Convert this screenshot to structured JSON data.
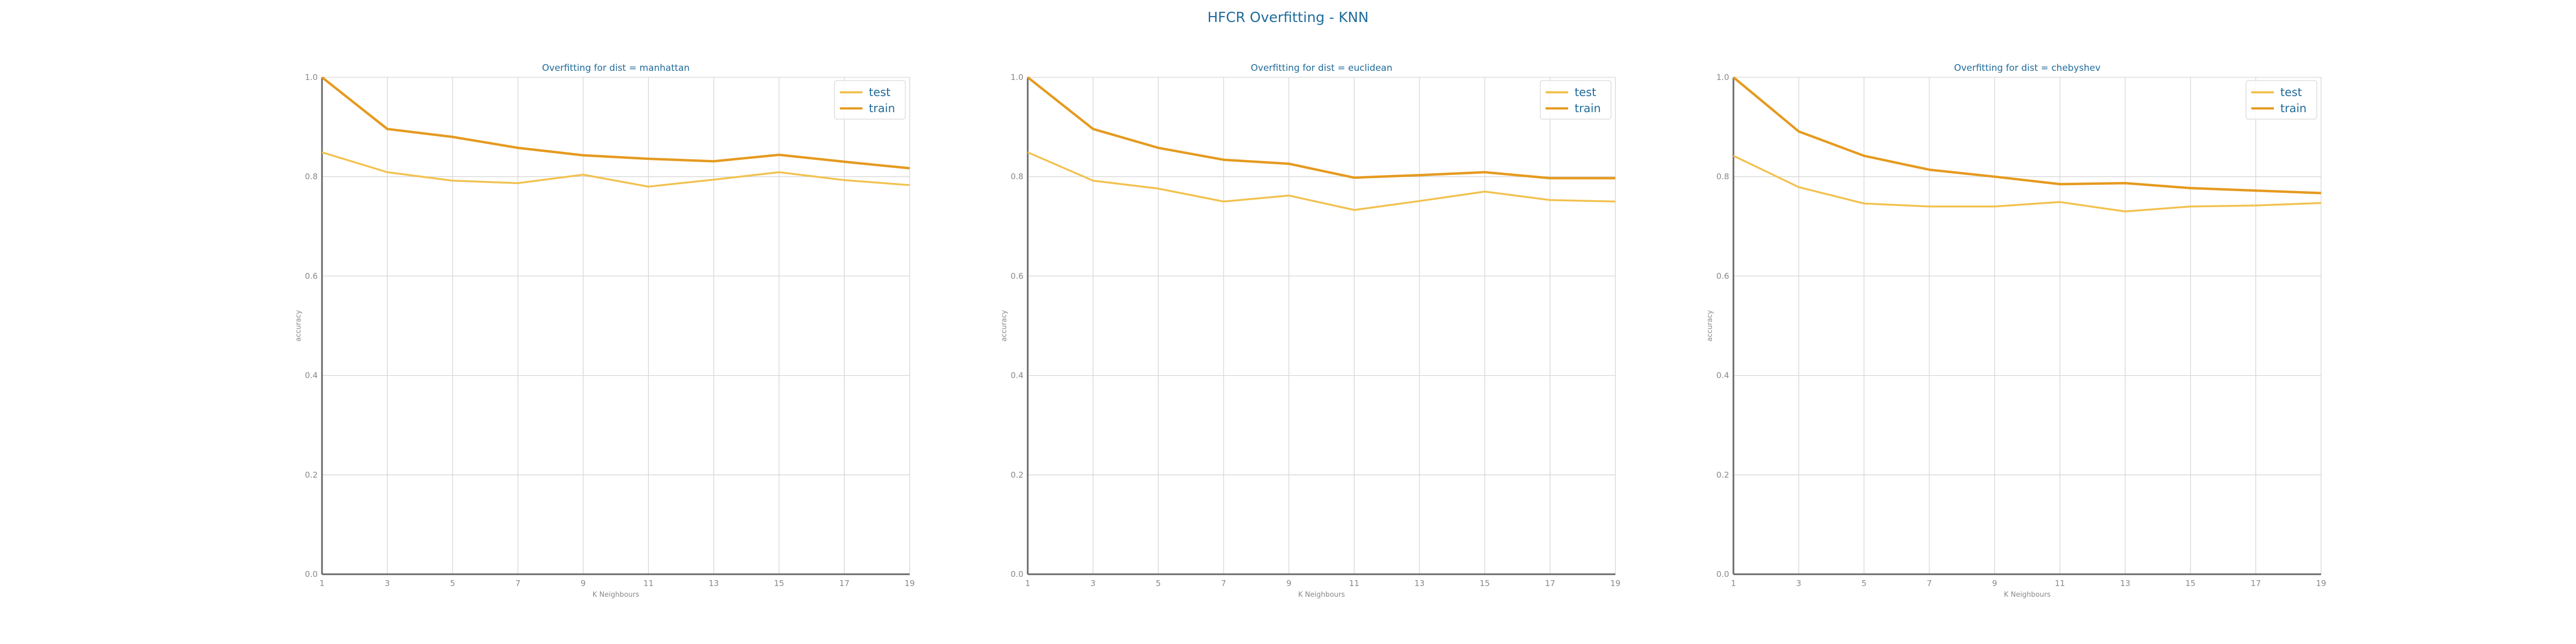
{
  "figure": {
    "title": "HFCR Overfitting - KNN"
  },
  "colors": {
    "title": "#1f6b9a",
    "test": "#f2c14e",
    "train": "#e59a1f",
    "grid": "#d6d6d6",
    "axis": "#666666",
    "tick": "#888888"
  },
  "chart_data": [
    {
      "type": "line",
      "title": "Overfitting for dist = manhattan",
      "xlabel": "K Neighbours",
      "ylabel": "accuracy",
      "x": [
        1,
        3,
        5,
        7,
        9,
        11,
        13,
        15,
        17,
        19
      ],
      "xticks": [
        "1",
        "3",
        "5",
        "7",
        "9",
        "11",
        "13",
        "15",
        "17",
        "19"
      ],
      "ylim": [
        0.0,
        1.0
      ],
      "yticks": [
        "0.0",
        "0.2",
        "0.4",
        "0.6",
        "0.8",
        "1.0"
      ],
      "grid": true,
      "legend_position": "top-right",
      "series": [
        {
          "name": "test",
          "color": "#f2c14e",
          "values": [
            0.849,
            0.809,
            0.792,
            0.787,
            0.804,
            0.78,
            0.794,
            0.809,
            0.793,
            0.783
          ]
        },
        {
          "name": "train",
          "color": "#e59a1f",
          "values": [
            1.0,
            0.896,
            0.88,
            0.858,
            0.843,
            0.836,
            0.831,
            0.844,
            0.83,
            0.817
          ]
        }
      ]
    },
    {
      "type": "line",
      "title": "Overfitting for dist = euclidean",
      "xlabel": "K Neighbours",
      "ylabel": "accuracy",
      "x": [
        1,
        3,
        5,
        7,
        9,
        11,
        13,
        15,
        17,
        19
      ],
      "xticks": [
        "1",
        "3",
        "5",
        "7",
        "9",
        "11",
        "13",
        "15",
        "17",
        "19"
      ],
      "ylim": [
        0.0,
        1.0
      ],
      "yticks": [
        "0.0",
        "0.2",
        "0.4",
        "0.6",
        "0.8",
        "1.0"
      ],
      "grid": true,
      "legend_position": "top-right",
      "series": [
        {
          "name": "test",
          "color": "#f2c14e",
          "values": [
            0.849,
            0.792,
            0.776,
            0.75,
            0.762,
            0.733,
            0.751,
            0.77,
            0.753,
            0.75
          ]
        },
        {
          "name": "train",
          "color": "#e59a1f",
          "values": [
            1.0,
            0.896,
            0.858,
            0.834,
            0.826,
            0.798,
            0.803,
            0.809,
            0.797,
            0.797
          ]
        }
      ]
    },
    {
      "type": "line",
      "title": "Overfitting for dist = chebyshev",
      "xlabel": "K Neighbours",
      "ylabel": "accuracy",
      "x": [
        1,
        3,
        5,
        7,
        9,
        11,
        13,
        15,
        17,
        19
      ],
      "xticks": [
        "1",
        "3",
        "5",
        "7",
        "9",
        "11",
        "13",
        "15",
        "17",
        "19"
      ],
      "ylim": [
        0.0,
        1.0
      ],
      "yticks": [
        "0.0",
        "0.2",
        "0.4",
        "0.6",
        "0.8",
        "1.0"
      ],
      "grid": true,
      "legend_position": "top-right",
      "series": [
        {
          "name": "test",
          "color": "#f2c14e",
          "values": [
            0.842,
            0.779,
            0.746,
            0.74,
            0.74,
            0.749,
            0.73,
            0.74,
            0.742,
            0.747
          ]
        },
        {
          "name": "train",
          "color": "#e59a1f",
          "values": [
            1.0,
            0.891,
            0.842,
            0.814,
            0.8,
            0.785,
            0.787,
            0.777,
            0.772,
            0.767
          ]
        }
      ]
    }
  ]
}
